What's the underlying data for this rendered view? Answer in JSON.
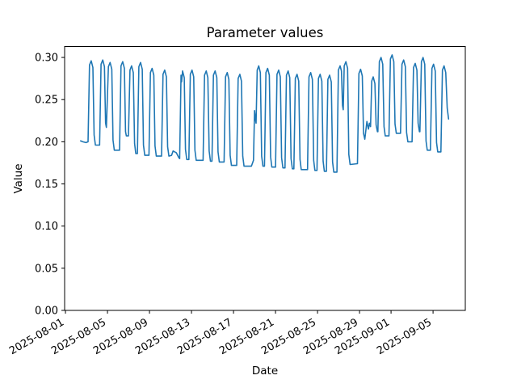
{
  "chart_data": {
    "type": "line",
    "title": "Parameter values",
    "xlabel": "Date",
    "ylabel": "Value",
    "line_color": "#1f77b4",
    "axis_color": "#000000",
    "background_color": "#ffffff",
    "legend": "none",
    "grid": false,
    "x_unit": "days since 2025-08-01",
    "xlim": [
      -0.08,
      38.07
    ],
    "ylim": [
      0.0,
      0.313
    ],
    "x_tick_rotation_deg": 30,
    "x_ticks": [
      {
        "t": 0,
        "label": "2025-08-01"
      },
      {
        "t": 4,
        "label": "2025-08-05"
      },
      {
        "t": 8,
        "label": "2025-08-09"
      },
      {
        "t": 12,
        "label": "2025-08-13"
      },
      {
        "t": 16,
        "label": "2025-08-17"
      },
      {
        "t": 20,
        "label": "2025-08-21"
      },
      {
        "t": 24,
        "label": "2025-08-25"
      },
      {
        "t": 28,
        "label": "2025-08-29"
      },
      {
        "t": 31,
        "label": "2025-09-01"
      },
      {
        "t": 35,
        "label": "2025-09-05"
      }
    ],
    "y_ticks": [
      {
        "v": 0.0,
        "label": "0.00"
      },
      {
        "v": 0.05,
        "label": "0.05"
      },
      {
        "v": 0.1,
        "label": "0.10"
      },
      {
        "v": 0.15,
        "label": "0.15"
      },
      {
        "v": 0.2,
        "label": "0.20"
      },
      {
        "v": 0.25,
        "label": "0.25"
      },
      {
        "v": 0.3,
        "label": "0.30"
      }
    ],
    "points": [
      [
        1.44,
        0.201
      ],
      [
        1.65,
        0.2
      ],
      [
        1.95,
        0.199
      ],
      [
        2.15,
        0.2
      ],
      [
        2.29,
        0.291
      ],
      [
        2.45,
        0.296
      ],
      [
        2.61,
        0.288
      ],
      [
        2.73,
        0.208
      ],
      [
        2.85,
        0.196
      ],
      [
        3.25,
        0.196
      ],
      [
        3.39,
        0.292
      ],
      [
        3.55,
        0.297
      ],
      [
        3.71,
        0.289
      ],
      [
        3.82,
        0.222
      ],
      [
        3.9,
        0.217
      ],
      [
        4.09,
        0.289
      ],
      [
        4.25,
        0.294
      ],
      [
        4.41,
        0.286
      ],
      [
        4.53,
        0.202
      ],
      [
        4.65,
        0.19
      ],
      [
        5.15,
        0.19
      ],
      [
        5.29,
        0.29
      ],
      [
        5.45,
        0.295
      ],
      [
        5.61,
        0.287
      ],
      [
        5.72,
        0.212
      ],
      [
        5.8,
        0.207
      ],
      [
        6.0,
        0.207
      ],
      [
        6.14,
        0.285
      ],
      [
        6.3,
        0.29
      ],
      [
        6.46,
        0.282
      ],
      [
        6.58,
        0.198
      ],
      [
        6.7,
        0.186
      ],
      [
        6.85,
        0.186
      ],
      [
        6.99,
        0.289
      ],
      [
        7.15,
        0.294
      ],
      [
        7.31,
        0.286
      ],
      [
        7.43,
        0.196
      ],
      [
        7.55,
        0.184
      ],
      [
        7.95,
        0.184
      ],
      [
        8.09,
        0.282
      ],
      [
        8.25,
        0.287
      ],
      [
        8.41,
        0.279
      ],
      [
        8.53,
        0.195
      ],
      [
        8.65,
        0.183
      ],
      [
        9.15,
        0.183
      ],
      [
        9.29,
        0.28
      ],
      [
        9.45,
        0.285
      ],
      [
        9.61,
        0.277
      ],
      [
        9.73,
        0.194
      ],
      [
        9.85,
        0.183
      ],
      [
        10.1,
        0.184
      ],
      [
        10.25,
        0.189
      ],
      [
        10.55,
        0.187
      ],
      [
        10.8,
        0.181
      ],
      [
        10.87,
        0.18
      ],
      [
        11.0,
        0.279
      ],
      [
        11.06,
        0.271
      ],
      [
        11.15,
        0.284
      ],
      [
        11.31,
        0.276
      ],
      [
        11.43,
        0.191
      ],
      [
        11.55,
        0.179
      ],
      [
        11.75,
        0.179
      ],
      [
        11.89,
        0.28
      ],
      [
        12.05,
        0.285
      ],
      [
        12.21,
        0.277
      ],
      [
        12.33,
        0.19
      ],
      [
        12.45,
        0.178
      ],
      [
        13.1,
        0.178
      ],
      [
        13.24,
        0.279
      ],
      [
        13.4,
        0.284
      ],
      [
        13.56,
        0.276
      ],
      [
        13.68,
        0.189
      ],
      [
        13.8,
        0.177
      ],
      [
        13.95,
        0.177
      ],
      [
        14.09,
        0.279
      ],
      [
        14.25,
        0.284
      ],
      [
        14.41,
        0.276
      ],
      [
        14.53,
        0.188
      ],
      [
        14.65,
        0.176
      ],
      [
        15.1,
        0.176
      ],
      [
        15.24,
        0.277
      ],
      [
        15.4,
        0.282
      ],
      [
        15.56,
        0.274
      ],
      [
        15.68,
        0.184
      ],
      [
        15.8,
        0.172
      ],
      [
        16.3,
        0.172
      ],
      [
        16.44,
        0.275
      ],
      [
        16.6,
        0.28
      ],
      [
        16.76,
        0.272
      ],
      [
        16.88,
        0.183
      ],
      [
        17.0,
        0.171
      ],
      [
        17.7,
        0.171
      ],
      [
        17.9,
        0.178
      ],
      [
        18.0,
        0.237
      ],
      [
        18.08,
        0.228
      ],
      [
        18.15,
        0.222
      ],
      [
        18.26,
        0.285
      ],
      [
        18.4,
        0.29
      ],
      [
        18.56,
        0.282
      ],
      [
        18.68,
        0.183
      ],
      [
        18.8,
        0.171
      ],
      [
        18.95,
        0.171
      ],
      [
        19.09,
        0.282
      ],
      [
        19.25,
        0.287
      ],
      [
        19.41,
        0.279
      ],
      [
        19.53,
        0.182
      ],
      [
        19.65,
        0.17
      ],
      [
        20.0,
        0.17
      ],
      [
        20.14,
        0.28
      ],
      [
        20.3,
        0.285
      ],
      [
        20.46,
        0.277
      ],
      [
        20.58,
        0.181
      ],
      [
        20.7,
        0.169
      ],
      [
        20.9,
        0.169
      ],
      [
        21.04,
        0.279
      ],
      [
        21.2,
        0.284
      ],
      [
        21.36,
        0.276
      ],
      [
        21.48,
        0.18
      ],
      [
        21.6,
        0.168
      ],
      [
        21.75,
        0.168
      ],
      [
        21.89,
        0.275
      ],
      [
        22.05,
        0.28
      ],
      [
        22.21,
        0.272
      ],
      [
        22.33,
        0.179
      ],
      [
        22.45,
        0.167
      ],
      [
        23.05,
        0.167
      ],
      [
        23.19,
        0.277
      ],
      [
        23.35,
        0.282
      ],
      [
        23.51,
        0.274
      ],
      [
        23.63,
        0.178
      ],
      [
        23.75,
        0.166
      ],
      [
        23.95,
        0.166
      ],
      [
        24.09,
        0.275
      ],
      [
        24.25,
        0.28
      ],
      [
        24.41,
        0.272
      ],
      [
        24.53,
        0.177
      ],
      [
        24.65,
        0.165
      ],
      [
        24.85,
        0.165
      ],
      [
        24.99,
        0.274
      ],
      [
        25.15,
        0.279
      ],
      [
        25.31,
        0.271
      ],
      [
        25.43,
        0.176
      ],
      [
        25.55,
        0.164
      ],
      [
        25.85,
        0.164
      ],
      [
        25.99,
        0.285
      ],
      [
        26.15,
        0.29
      ],
      [
        26.28,
        0.284
      ],
      [
        26.38,
        0.243
      ],
      [
        26.45,
        0.238
      ],
      [
        26.54,
        0.29
      ],
      [
        26.7,
        0.295
      ],
      [
        26.86,
        0.287
      ],
      [
        26.98,
        0.185
      ],
      [
        27.1,
        0.173
      ],
      [
        27.8,
        0.174
      ],
      [
        27.94,
        0.281
      ],
      [
        28.1,
        0.286
      ],
      [
        28.26,
        0.278
      ],
      [
        28.38,
        0.21
      ],
      [
        28.5,
        0.203
      ],
      [
        28.7,
        0.224
      ],
      [
        28.85,
        0.215
      ],
      [
        28.95,
        0.222
      ],
      [
        29.05,
        0.218
      ],
      [
        29.16,
        0.272
      ],
      [
        29.3,
        0.277
      ],
      [
        29.46,
        0.269
      ],
      [
        29.58,
        0.22
      ],
      [
        29.7,
        0.212
      ],
      [
        29.75,
        0.212
      ],
      [
        29.89,
        0.295
      ],
      [
        30.05,
        0.3
      ],
      [
        30.21,
        0.292
      ],
      [
        30.33,
        0.218
      ],
      [
        30.45,
        0.207
      ],
      [
        30.8,
        0.207
      ],
      [
        30.94,
        0.298
      ],
      [
        31.1,
        0.303
      ],
      [
        31.26,
        0.295
      ],
      [
        31.38,
        0.221
      ],
      [
        31.5,
        0.21
      ],
      [
        31.9,
        0.21
      ],
      [
        32.04,
        0.292
      ],
      [
        32.2,
        0.297
      ],
      [
        32.36,
        0.289
      ],
      [
        32.48,
        0.211
      ],
      [
        32.6,
        0.2
      ],
      [
        33.0,
        0.2
      ],
      [
        33.14,
        0.288
      ],
      [
        33.3,
        0.293
      ],
      [
        33.46,
        0.285
      ],
      [
        33.58,
        0.222
      ],
      [
        33.7,
        0.212
      ],
      [
        33.75,
        0.212
      ],
      [
        33.89,
        0.295
      ],
      [
        34.05,
        0.3
      ],
      [
        34.21,
        0.292
      ],
      [
        34.33,
        0.201
      ],
      [
        34.45,
        0.19
      ],
      [
        34.75,
        0.19
      ],
      [
        34.89,
        0.287
      ],
      [
        35.05,
        0.292
      ],
      [
        35.21,
        0.284
      ],
      [
        35.33,
        0.199
      ],
      [
        35.45,
        0.188
      ],
      [
        35.75,
        0.188
      ],
      [
        35.89,
        0.285
      ],
      [
        36.05,
        0.29
      ],
      [
        36.21,
        0.282
      ],
      [
        36.35,
        0.24
      ],
      [
        36.48,
        0.227
      ]
    ]
  }
}
